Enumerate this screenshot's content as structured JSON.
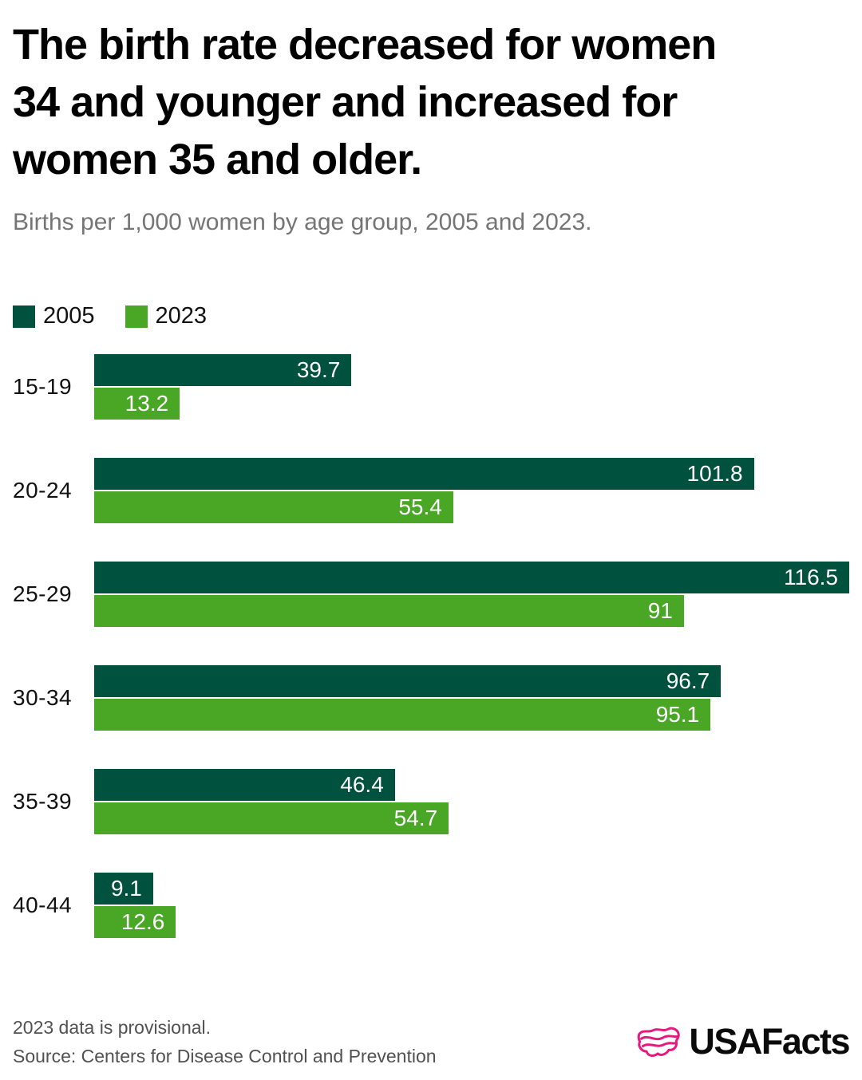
{
  "header": {
    "title": "The birth rate decreased for women 34 and younger and increased for women 35 and older.",
    "title_lines": [
      "The birth rate decreased for women",
      "34 and younger and increased for",
      "women 35 and older."
    ],
    "subtitle": "Births per 1,000 women by age group, 2005 and 2023."
  },
  "legend": [
    {
      "label": "2005",
      "color": "#00513E"
    },
    {
      "label": "2023",
      "color": "#4AA726"
    }
  ],
  "chart_data": {
    "type": "bar",
    "orientation": "horizontal",
    "title": "The birth rate decreased for women 34 and younger and increased for women 35 and older.",
    "subtitle": "Births per 1,000 women by age group, 2005 and 2023.",
    "categories": [
      "15-19",
      "20-24",
      "25-29",
      "30-34",
      "35-39",
      "40-44"
    ],
    "series": [
      {
        "name": "2005",
        "color": "#00513E",
        "values": [
          39.7,
          101.8,
          116.5,
          96.7,
          46.4,
          9.1
        ],
        "display_labels": [
          "39.7",
          "101.8",
          "116.5",
          "96.7",
          "46.4",
          "9.1"
        ]
      },
      {
        "name": "2023",
        "color": "#4AA726",
        "values": [
          13.2,
          55.4,
          91,
          95.1,
          54.7,
          12.6
        ],
        "display_labels": [
          "13.2",
          "55.4",
          "91",
          "95.1",
          "54.7",
          "12.6"
        ]
      }
    ],
    "value_axis": {
      "min": 0,
      "max": 116.5,
      "gridlines": false,
      "tick_labels_visible": false
    },
    "legend_position": "top-left",
    "value_labels": "inside-end",
    "value_label_color": "#FFFFFF"
  },
  "footer": {
    "note": "2023 data is provisional.",
    "source": "Source: Centers for Disease Control and Prevention",
    "logo_text": "USAFacts"
  },
  "colors": {
    "series_2005": "#00513E",
    "series_2023": "#4AA726",
    "title_text": "#000000",
    "subtitle_text": "#757575",
    "footer_text": "#515151",
    "logo_pink": "#E6197E",
    "background": "#FFFFFF"
  }
}
